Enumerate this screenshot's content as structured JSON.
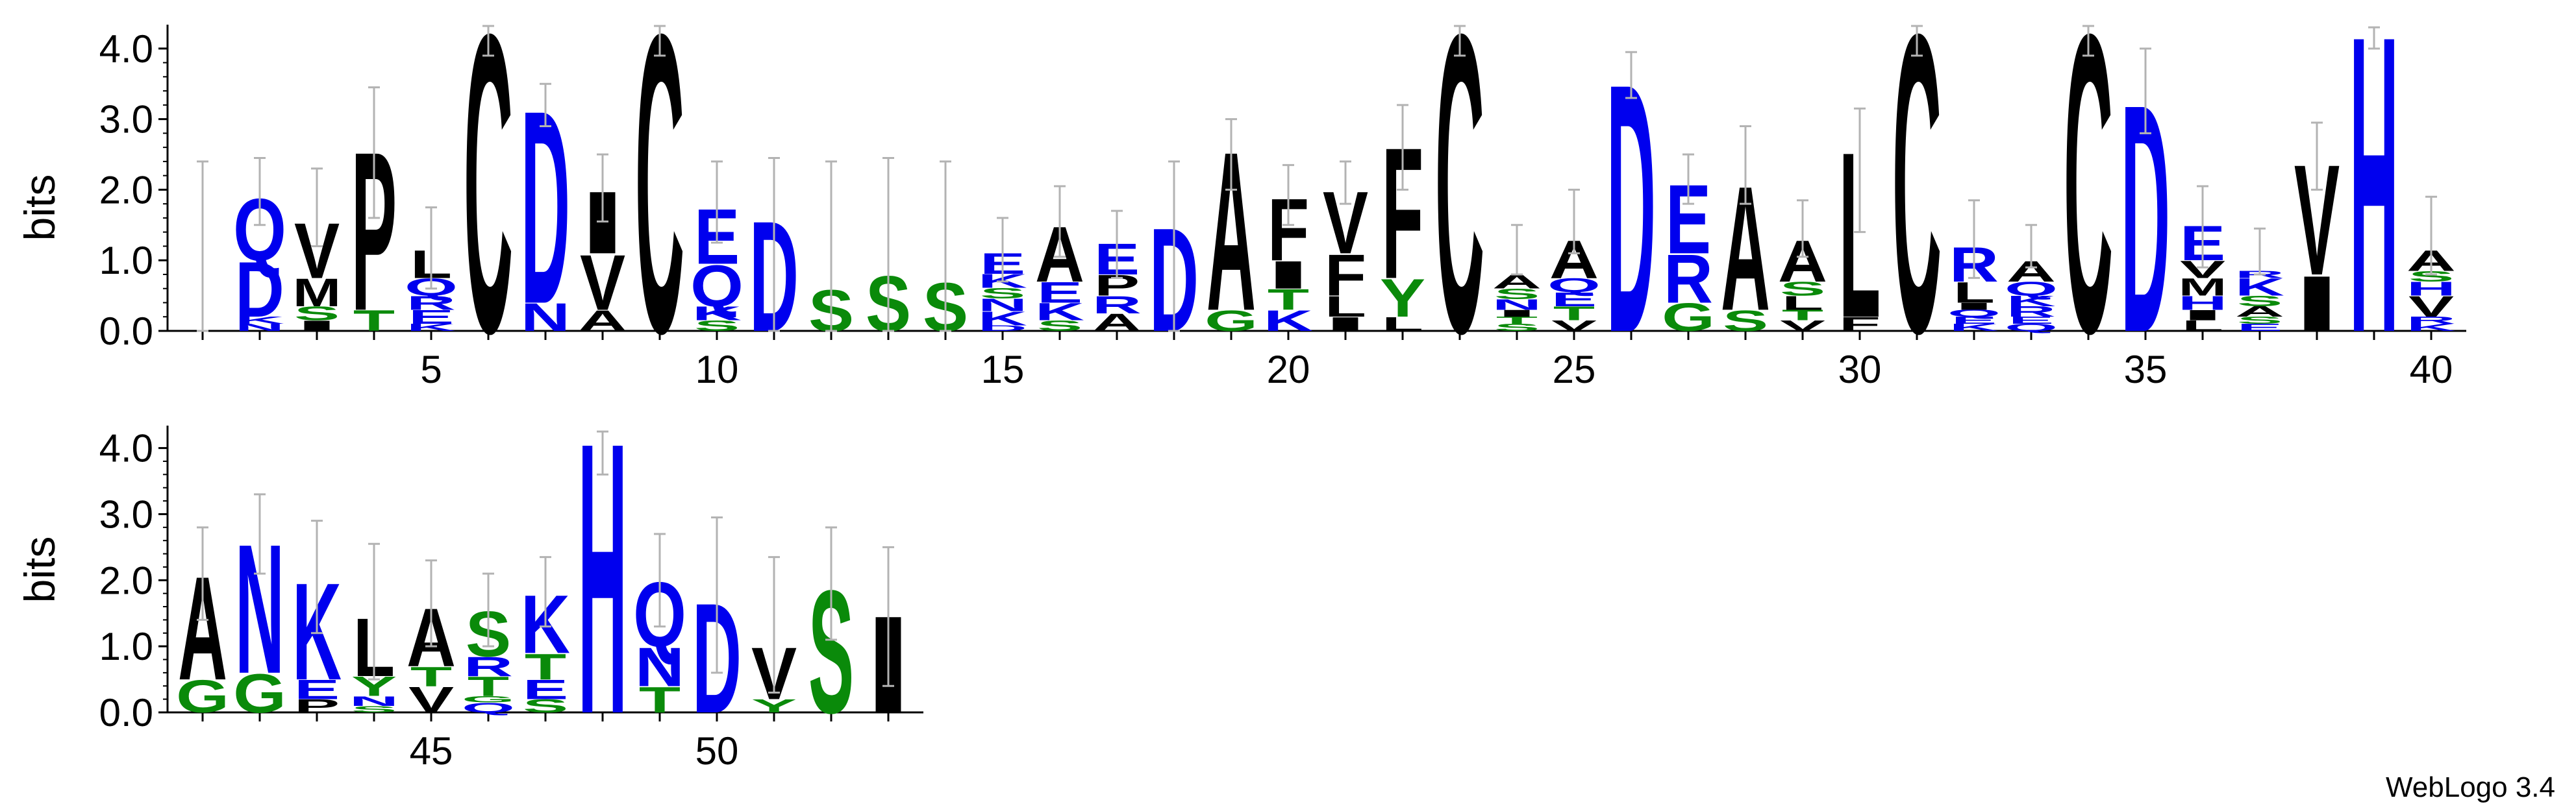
{
  "credit": "WebLogo 3.4",
  "colors": {
    "black": "#000000",
    "blue": "#0000ee",
    "green": "#0a8a0a",
    "errorbar": "#b3b3b3"
  },
  "color_groups": {
    "black": [
      "A",
      "F",
      "I",
      "L",
      "M",
      "P",
      "V",
      "W",
      "C"
    ],
    "blue": [
      "D",
      "E",
      "K",
      "R",
      "H",
      "Q",
      "N"
    ],
    "green": [
      "G",
      "S",
      "T",
      "Y"
    ]
  },
  "chart_data": [
    {
      "type": "sequence-logo",
      "ylabel": "bits",
      "ylim": [
        0,
        4.32
      ],
      "yticks": [
        "0.0",
        "1.0",
        "2.0",
        "3.0",
        "4.0"
      ],
      "x_first": 1,
      "x_last": 40,
      "xticks": [
        5,
        10,
        15,
        20,
        25,
        30,
        35,
        40
      ],
      "positions": [
        {
          "pos": 1,
          "err": [
            0,
            2.4
          ],
          "stack": []
        },
        {
          "pos": 2,
          "err": [
            1.5,
            2.45
          ],
          "stack": [
            [
              "N",
              0.1
            ],
            [
              "K",
              0.1
            ],
            [
              "D",
              0.8
            ],
            [
              "Q",
              0.9
            ]
          ]
        },
        {
          "pos": 3,
          "err": [
            1.2,
            2.3
          ],
          "stack": [
            [
              "I",
              0.15
            ],
            [
              "S",
              0.2
            ],
            [
              "M",
              0.4
            ],
            [
              "V",
              0.8
            ]
          ]
        },
        {
          "pos": 4,
          "err": [
            1.6,
            3.45
          ],
          "stack": [
            [
              "T",
              0.3
            ],
            [
              "P",
              2.3
            ]
          ]
        },
        {
          "pos": 5,
          "err": [
            0.6,
            1.75
          ],
          "stack": [
            [
              "K",
              0.1
            ],
            [
              "E",
              0.2
            ],
            [
              "R",
              0.2
            ],
            [
              "Q",
              0.25
            ],
            [
              "L",
              0.4
            ]
          ]
        },
        {
          "pos": 6,
          "err": [
            3.9,
            4.32
          ],
          "stack": [
            [
              "C",
              4.32
            ]
          ]
        },
        {
          "pos": 7,
          "err": [
            2.9,
            3.5
          ],
          "stack": [
            [
              "N",
              0.4
            ],
            [
              "D",
              2.8
            ]
          ]
        },
        {
          "pos": 8,
          "err": [
            1.55,
            2.5
          ],
          "stack": [
            [
              "A",
              0.3
            ],
            [
              "V",
              0.8
            ],
            [
              "I",
              0.9
            ]
          ]
        },
        {
          "pos": 9,
          "err": [
            3.9,
            4.32
          ],
          "stack": [
            [
              "C",
              4.32
            ]
          ]
        },
        {
          "pos": 10,
          "err": [
            1.25,
            2.4
          ],
          "stack": [
            [
              "S",
              0.15
            ],
            [
              "K",
              0.2
            ],
            [
              "Q",
              0.6
            ],
            [
              "E",
              0.8
            ]
          ]
        },
        {
          "pos": 11,
          "err": [
            0,
            2.45
          ],
          "stack": [
            [
              "D",
              1.6
            ]
          ]
        },
        {
          "pos": 12,
          "err": [
            0,
            2.4
          ],
          "stack": [
            [
              "S",
              0.6
            ]
          ]
        },
        {
          "pos": 13,
          "err": [
            0,
            2.45
          ],
          "stack": [
            [
              "S",
              0.8
            ]
          ]
        },
        {
          "pos": 14,
          "err": [
            0,
            2.4
          ],
          "stack": [
            [
              "S",
              0.7
            ]
          ]
        },
        {
          "pos": 15,
          "err": [
            0.7,
            1.6
          ],
          "stack": [
            [
              "D",
              0.08
            ],
            [
              "K",
              0.2
            ],
            [
              "N",
              0.18
            ],
            [
              "S",
              0.15
            ],
            [
              "K",
              0.2
            ],
            [
              "E",
              0.3
            ]
          ]
        },
        {
          "pos": 16,
          "err": [
            1.05,
            2.05
          ],
          "stack": [
            [
              "S",
              0.15
            ],
            [
              "K",
              0.25
            ],
            [
              "E",
              0.3
            ],
            [
              "A",
              0.8
            ]
          ]
        },
        {
          "pos": 17,
          "err": [
            0.75,
            1.7
          ],
          "stack": [
            [
              "A",
              0.25
            ],
            [
              "R",
              0.25
            ],
            [
              "P",
              0.3
            ],
            [
              "E",
              0.45
            ]
          ]
        },
        {
          "pos": 18,
          "err": [
            0,
            2.4
          ],
          "stack": [
            [
              "D",
              1.5
            ]
          ]
        },
        {
          "pos": 19,
          "err": [
            2.0,
            3.0
          ],
          "stack": [
            [
              "G",
              0.3
            ],
            [
              "A",
              2.3
            ]
          ]
        },
        {
          "pos": 20,
          "err": [
            1.5,
            2.35
          ],
          "stack": [
            [
              "K",
              0.3
            ],
            [
              "T",
              0.3
            ],
            [
              "I",
              0.4
            ],
            [
              "F",
              0.9
            ]
          ]
        },
        {
          "pos": 21,
          "err": [
            1.8,
            2.4
          ],
          "stack": [
            [
              "I",
              0.2
            ],
            [
              "L",
              0.3
            ],
            [
              "F",
              0.6
            ],
            [
              "V",
              0.9
            ]
          ]
        },
        {
          "pos": 22,
          "err": [
            2.0,
            3.2
          ],
          "stack": [
            [
              "L",
              0.2
            ],
            [
              "Y",
              0.55
            ],
            [
              "F",
              1.9
            ]
          ]
        },
        {
          "pos": 23,
          "err": [
            3.9,
            4.32
          ],
          "stack": [
            [
              "C",
              4.32
            ]
          ]
        },
        {
          "pos": 24,
          "err": [
            0.8,
            1.5
          ],
          "stack": [
            [
              "S",
              0.1
            ],
            [
              "T",
              0.1
            ],
            [
              "I",
              0.1
            ],
            [
              "N",
              0.15
            ],
            [
              "S",
              0.15
            ],
            [
              "A",
              0.2
            ]
          ]
        },
        {
          "pos": 25,
          "err": [
            1.1,
            2.0
          ],
          "stack": [
            [
              "V",
              0.15
            ],
            [
              "T",
              0.2
            ],
            [
              "E",
              0.2
            ],
            [
              "Q",
              0.2
            ],
            [
              "A",
              0.55
            ]
          ]
        },
        {
          "pos": 26,
          "err": [
            3.3,
            3.95
          ],
          "stack": [
            [
              "D",
              3.6
            ]
          ]
        },
        {
          "pos": 27,
          "err": [
            1.8,
            2.5
          ],
          "stack": [
            [
              "G",
              0.4
            ],
            [
              "R",
              0.7
            ],
            [
              "E",
              1.0
            ]
          ]
        },
        {
          "pos": 28,
          "err": [
            1.8,
            2.9
          ],
          "stack": [
            [
              "S",
              0.3
            ],
            [
              "A",
              1.8
            ]
          ]
        },
        {
          "pos": 29,
          "err": [
            1.05,
            1.85
          ],
          "stack": [
            [
              "V",
              0.15
            ],
            [
              "T",
              0.15
            ],
            [
              "L",
              0.2
            ],
            [
              "S",
              0.2
            ],
            [
              "A",
              0.6
            ]
          ]
        },
        {
          "pos": 30,
          "err": [
            1.4,
            3.15
          ],
          "stack": [
            [
              "F",
              0.2
            ],
            [
              "L",
              2.4
            ]
          ]
        },
        {
          "pos": 31,
          "err": [
            3.9,
            4.32
          ],
          "stack": [
            [
              "C",
              4.32
            ]
          ]
        },
        {
          "pos": 32,
          "err": [
            0.75,
            1.85
          ],
          "stack": [
            [
              "K",
              0.1
            ],
            [
              "E",
              0.1
            ],
            [
              "Q",
              0.1
            ],
            [
              "I",
              0.1
            ],
            [
              "L",
              0.3
            ],
            [
              "R",
              0.5
            ]
          ]
        },
        {
          "pos": 33,
          "err": [
            0.9,
            1.5
          ],
          "stack": [
            [
              "Q",
              0.1
            ],
            [
              "E",
              0.1
            ],
            [
              "R",
              0.15
            ],
            [
              "K",
              0.15
            ],
            [
              "Q",
              0.2
            ],
            [
              "A",
              0.3
            ]
          ]
        },
        {
          "pos": 34,
          "err": [
            3.9,
            4.32
          ],
          "stack": [
            [
              "C",
              4.32
            ]
          ]
        },
        {
          "pos": 35,
          "err": [
            2.8,
            4.0
          ],
          "stack": [
            [
              "D",
              3.3
            ]
          ]
        },
        {
          "pos": 36,
          "err": [
            0.9,
            2.05
          ],
          "stack": [
            [
              "L",
              0.15
            ],
            [
              "I",
              0.15
            ],
            [
              "H",
              0.2
            ],
            [
              "M",
              0.25
            ],
            [
              "V",
              0.25
            ],
            [
              "E",
              0.5
            ]
          ]
        },
        {
          "pos": 37,
          "err": [
            0.8,
            1.45
          ],
          "stack": [
            [
              "E",
              0.1
            ],
            [
              "S",
              0.1
            ],
            [
              "A",
              0.15
            ],
            [
              "S",
              0.15
            ],
            [
              "K",
              0.25
            ],
            [
              "R",
              0.1
            ]
          ]
        },
        {
          "pos": 38,
          "err": [
            2.0,
            2.95
          ],
          "stack": [
            [
              "I",
              0.8
            ],
            [
              "V",
              1.6
            ]
          ]
        },
        {
          "pos": 39,
          "err": [
            4.0,
            4.3
          ],
          "stack": [
            [
              "H",
              4.3
            ]
          ]
        },
        {
          "pos": 40,
          "err": [
            0.8,
            1.9
          ],
          "stack": [
            [
              "K",
              0.1
            ],
            [
              "R",
              0.1
            ],
            [
              "V",
              0.3
            ],
            [
              "H",
              0.2
            ],
            [
              "S",
              0.15
            ],
            [
              "A",
              0.3
            ]
          ]
        }
      ]
    },
    {
      "type": "sequence-logo",
      "ylabel": "bits",
      "ylim": [
        0,
        4.32
      ],
      "yticks": [
        "0.0",
        "1.0",
        "2.0",
        "3.0",
        "4.0"
      ],
      "x_first": 41,
      "x_last": 53,
      "xticks": [
        45,
        50
      ],
      "positions": [
        {
          "pos": 41,
          "err": [
            1.4,
            2.8
          ],
          "stack": [
            [
              "G",
              0.5
            ],
            [
              "A",
              1.6
            ]
          ]
        },
        {
          "pos": 42,
          "err": [
            2.1,
            3.3
          ],
          "stack": [
            [
              "G",
              0.6
            ],
            [
              "N",
              2.0
            ]
          ]
        },
        {
          "pos": 43,
          "err": [
            1.2,
            2.9
          ],
          "stack": [
            [
              "P",
              0.2
            ],
            [
              "E",
              0.3
            ],
            [
              "K",
              1.5
            ]
          ]
        },
        {
          "pos": 44,
          "err": [
            0.5,
            2.55
          ],
          "stack": [
            [
              "S",
              0.1
            ],
            [
              "N",
              0.15
            ],
            [
              "Y",
              0.3
            ],
            [
              "L",
              0.9
            ]
          ]
        },
        {
          "pos": 45,
          "err": [
            1.0,
            2.3
          ],
          "stack": [
            [
              "V",
              0.4
            ],
            [
              "T",
              0.3
            ],
            [
              "A",
              0.9
            ]
          ]
        },
        {
          "pos": 46,
          "err": [
            1.0,
            2.1
          ],
          "stack": [
            [
              "Q",
              0.15
            ],
            [
              "G",
              0.1
            ],
            [
              "T",
              0.3
            ],
            [
              "R",
              0.3
            ],
            [
              "S",
              0.7
            ]
          ]
        },
        {
          "pos": 47,
          "err": [
            1.3,
            2.35
          ],
          "stack": [
            [
              "S",
              0.2
            ],
            [
              "E",
              0.3
            ],
            [
              "T",
              0.4
            ],
            [
              "K",
              0.9
            ]
          ]
        },
        {
          "pos": 48,
          "err": [
            3.6,
            4.25
          ],
          "stack": [
            [
              "H",
              4.2
            ]
          ]
        },
        {
          "pos": 49,
          "err": [
            1.3,
            2.7
          ],
          "stack": [
            [
              "T",
              0.4
            ],
            [
              "N",
              0.6
            ],
            [
              "Q",
              1.0
            ]
          ]
        },
        {
          "pos": 50,
          "err": [
            0.6,
            2.95
          ],
          "stack": [
            [
              "D",
              1.7
            ]
          ]
        },
        {
          "pos": 51,
          "err": [
            0.3,
            2.35
          ],
          "stack": [
            [
              "Y",
              0.2
            ],
            [
              "V",
              0.8
            ]
          ]
        },
        {
          "pos": 52,
          "err": [
            1.1,
            2.8
          ],
          "stack": [
            [
              "S",
              1.9
            ]
          ]
        },
        {
          "pos": 53,
          "err": [
            0.4,
            2.5
          ],
          "stack": [
            [
              "I",
              1.5
            ]
          ]
        }
      ]
    }
  ]
}
